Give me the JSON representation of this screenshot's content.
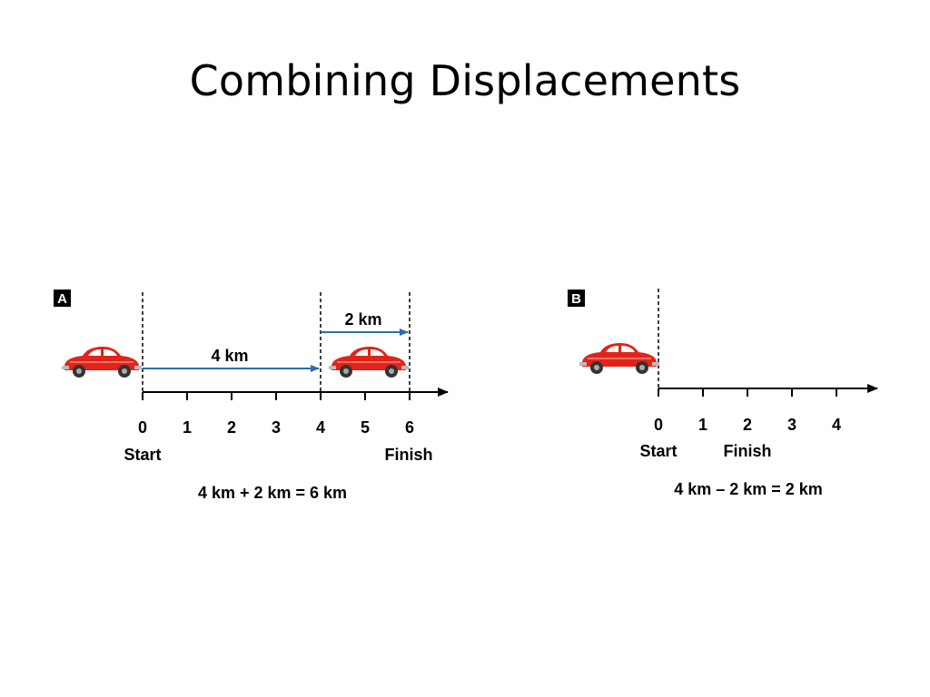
{
  "slide": {
    "title": "Combining Displacements"
  },
  "panel_a": {
    "label": "A",
    "tick_labels": [
      "0",
      "1",
      "2",
      "3",
      "4",
      "5",
      "6"
    ],
    "start_label": "Start",
    "finish_label": "Finish",
    "arrow_first_label": "4 km",
    "arrow_second_label": "2 km",
    "equation": "4 km + 2 km = 6 km"
  },
  "panel_b": {
    "label": "B",
    "tick_labels": [
      "0",
      "1",
      "2",
      "3",
      "4"
    ],
    "start_label": "Start",
    "finish_label": "Finish",
    "equation": "4 km – 2 km = 2 km"
  },
  "colors": {
    "arrow": "#2a6db0",
    "car_body": "#e2231a",
    "line": "#000000"
  },
  "icons": [
    "car-icon"
  ]
}
